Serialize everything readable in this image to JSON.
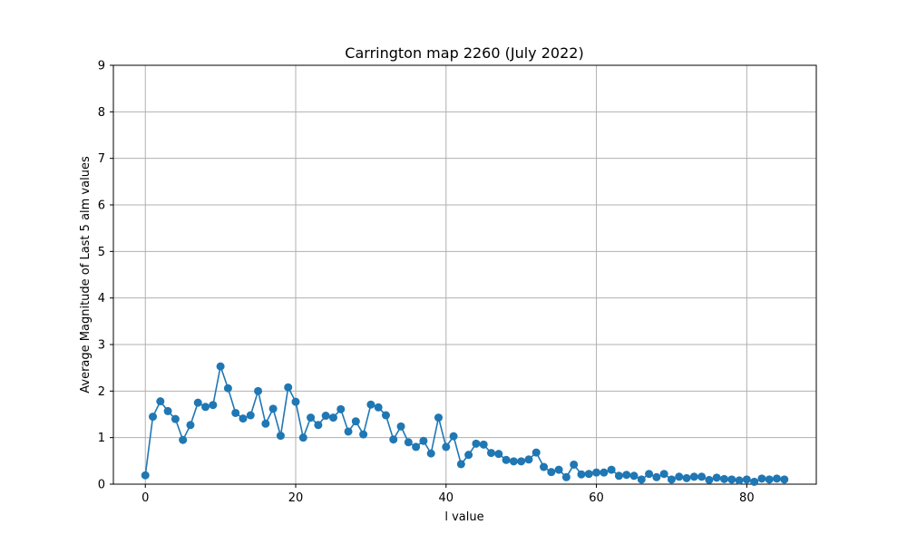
{
  "chart_data": {
    "type": "line",
    "title": "Carrington map 2260 (July 2022)",
    "xlabel": "l value",
    "ylabel": "Average Magnitude of Last 5 alm values",
    "xlim": [
      -4.25,
      89.25
    ],
    "ylim": [
      0,
      9
    ],
    "xticks": [
      0,
      20,
      40,
      60,
      80
    ],
    "yticks": [
      0,
      1,
      2,
      3,
      4,
      5,
      6,
      7,
      8,
      9
    ],
    "grid": true,
    "marker": "circle",
    "color": "#1f77b4",
    "x": [
      0,
      1,
      2,
      3,
      4,
      5,
      6,
      7,
      8,
      9,
      10,
      11,
      12,
      13,
      14,
      15,
      16,
      17,
      18,
      19,
      20,
      21,
      22,
      23,
      24,
      25,
      26,
      27,
      28,
      29,
      30,
      31,
      32,
      33,
      34,
      35,
      36,
      37,
      38,
      39,
      40,
      41,
      42,
      43,
      44,
      45,
      46,
      47,
      48,
      49,
      50,
      51,
      52,
      53,
      54,
      55,
      56,
      57,
      58,
      59,
      60,
      61,
      62,
      63,
      64,
      65,
      66,
      67,
      68,
      69,
      70,
      71,
      72,
      73,
      74,
      75,
      76,
      77,
      78,
      79,
      80,
      81,
      82,
      83,
      84,
      85
    ],
    "y": [
      0.19,
      1.45,
      1.78,
      1.57,
      1.4,
      0.95,
      1.27,
      1.75,
      1.66,
      1.7,
      2.53,
      2.06,
      1.53,
      1.41,
      1.48,
      2.0,
      1.3,
      1.62,
      1.04,
      2.08,
      1.77,
      1.0,
      1.43,
      1.27,
      1.47,
      1.43,
      1.61,
      1.13,
      1.35,
      1.07,
      1.71,
      1.65,
      1.48,
      0.96,
      1.24,
      0.9,
      0.8,
      0.93,
      0.66,
      1.43,
      0.8,
      1.03,
      0.43,
      0.63,
      0.87,
      0.85,
      0.67,
      0.65,
      0.52,
      0.49,
      0.49,
      0.53,
      0.68,
      0.37,
      0.26,
      0.31,
      0.15,
      0.42,
      0.21,
      0.22,
      0.25,
      0.25,
      0.31,
      0.18,
      0.2,
      0.18,
      0.1,
      0.22,
      0.15,
      0.22,
      0.1,
      0.16,
      0.13,
      0.16,
      0.16,
      0.09,
      0.14,
      0.11,
      0.1,
      0.08,
      0.1,
      0.05,
      0.12,
      0.1,
      0.12,
      0.1
    ]
  }
}
